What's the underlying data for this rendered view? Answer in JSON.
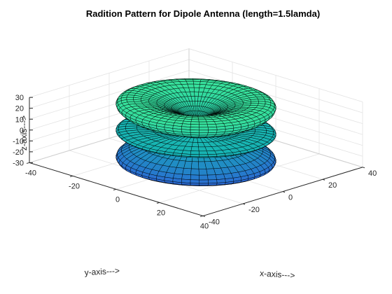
{
  "chart_data": {
    "type": "surface",
    "title": "Radition Pattern for Dipole Antenna (length=1.5lamda)",
    "xlabel": "x-axis--->",
    "ylabel": "y-axis--->",
    "zlabel": "z-axis--->",
    "xlim": [
      -40,
      40
    ],
    "ylim": [
      -40,
      40
    ],
    "zlim": [
      -30,
      30
    ],
    "x_ticks": [
      -40,
      -20,
      0,
      20,
      40
    ],
    "y_ticks": [
      -40,
      -20,
      0,
      20,
      40
    ],
    "z_ticks": [
      -30,
      -20,
      -10,
      0,
      10,
      20,
      30
    ],
    "dipole_length_wavelengths": 1.5,
    "pattern_peak_radius": 38,
    "grid": true,
    "box": "full",
    "colormap": "parula",
    "colors": {
      "low": "#2f5fd9",
      "mid": "#15b0b4",
      "high": "#38e39b",
      "edge": "#000000",
      "grid": "#e3e3e3",
      "axis": "#262626"
    }
  }
}
